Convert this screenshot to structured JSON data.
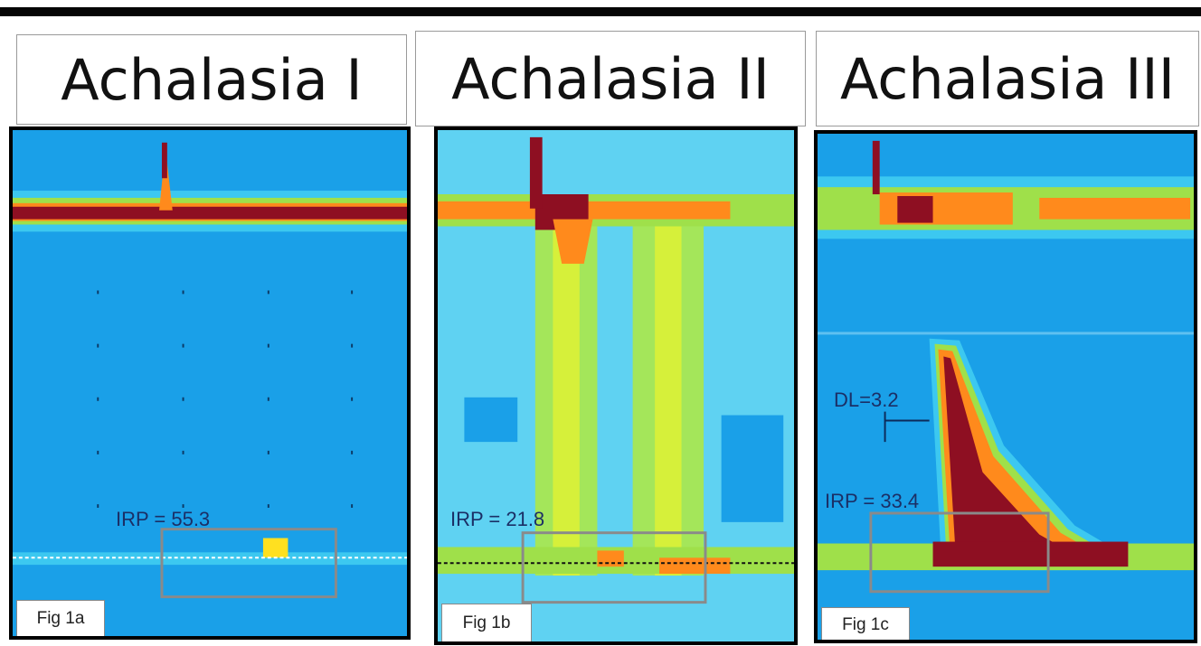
{
  "panels": [
    {
      "title": "Achalasia I",
      "fig_label": "Fig 1a",
      "irp_label": "IRP = 55.3"
    },
    {
      "title": "Achalasia II",
      "fig_label": "Fig 1b",
      "irp_label": "IRP = 21.8"
    },
    {
      "title": "Achalasia III",
      "fig_label": "Fig 1c",
      "irp_label": "IRP = 33.4",
      "dl_label": "DL=3.2"
    }
  ],
  "colors": {
    "background": "#1aa0e8",
    "low_pressure": "#3cc8f0",
    "mid_pressure": "#9fe04a",
    "high_pressure": "#ff8a1c",
    "peak_pressure": "#8e0f22",
    "box_outline": "#8a8a8a"
  }
}
